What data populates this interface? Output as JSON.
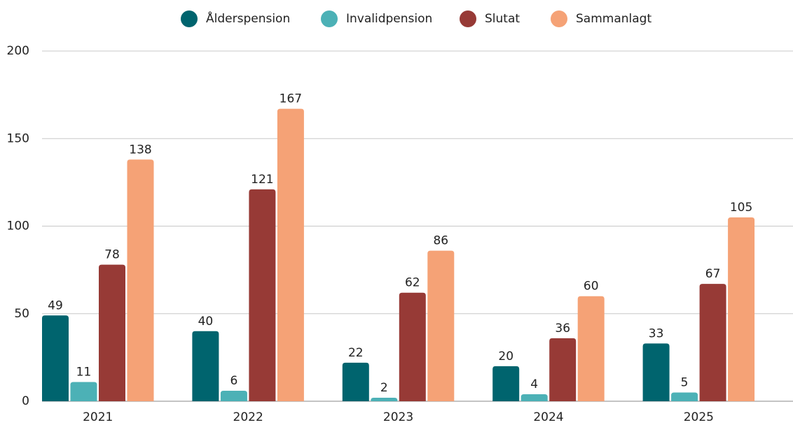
{
  "chart_data": {
    "type": "bar",
    "categories": [
      "2021",
      "2022",
      "2023",
      "2024",
      "2025"
    ],
    "series": [
      {
        "name": "Ålderspension",
        "color": "#00646e",
        "values": [
          49,
          40,
          22,
          20,
          33
        ]
      },
      {
        "name": "Invalidpension",
        "color": "#4cb1b6",
        "values": [
          11,
          6,
          2,
          4,
          5
        ]
      },
      {
        "name": "Slutat",
        "color": "#973a36",
        "values": [
          78,
          121,
          62,
          36,
          67
        ]
      },
      {
        "name": "Sammanlagt",
        "color": "#f5a276",
        "values": [
          138,
          167,
          86,
          60,
          105
        ]
      }
    ],
    "ylim": [
      0,
      200
    ],
    "yticks": [
      0,
      50,
      100,
      150,
      200
    ],
    "grid": true,
    "legend": "top"
  }
}
